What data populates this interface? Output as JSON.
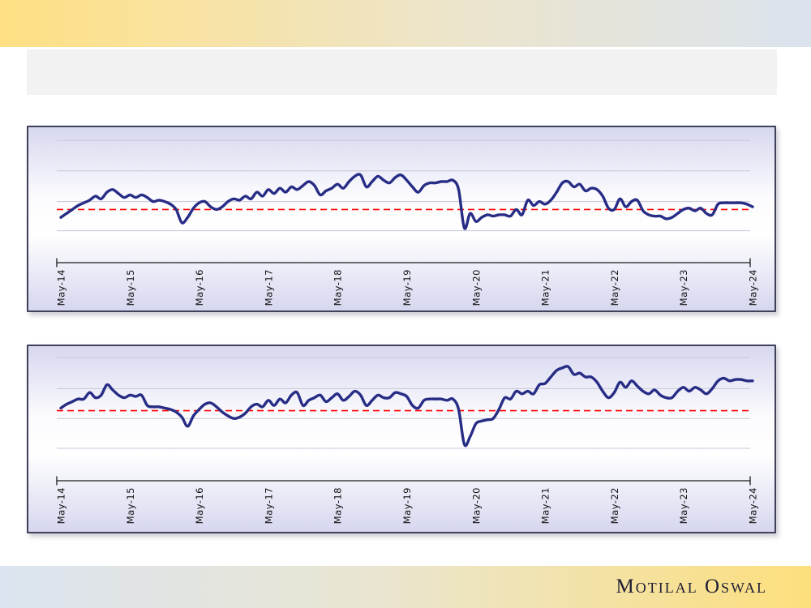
{
  "header": {
    "title": ""
  },
  "footer": {
    "brand": "Motilal Oswal"
  },
  "colors": {
    "top_bar_left": "#FFE083",
    "top_bar_mid": "#EDE5CB",
    "top_bar_right": "#DBE3EE",
    "footer_left": "#DBE4F0",
    "footer_mid": "#E9E5D2",
    "footer_right": "#FDDF7D",
    "title_box": "#F2F2F2",
    "panel_border": "#3F4059",
    "line": "#272C85",
    "reference": "#FF0000",
    "grid": "#C6C6D8",
    "axis": "#1A1A1A",
    "label_text": "#111111",
    "brand_text": "#1D1D33"
  },
  "chart_data": [
    {
      "type": "line",
      "title": "",
      "x_labels": [
        "May-14",
        "May-15",
        "May-16",
        "May-17",
        "May-18",
        "May-19",
        "May-20",
        "May-21",
        "May-22",
        "May-23",
        "May-24"
      ],
      "x_frequency": "monthly",
      "y_axis_labels": "none (axis unlabeled in image)",
      "y_unit": "estimated percent of plot height above x-axis baseline",
      "ylim": [
        0,
        100
      ],
      "grid": true,
      "gridlines_pct": [
        24,
        46,
        69,
        92
      ],
      "legend": "none",
      "reference_line": {
        "style": "dashed",
        "color": "#FF0000",
        "value_pct": 40
      },
      "series": [
        {
          "name": "series-1",
          "color": "#272C85",
          "values": [
            34,
            37,
            40,
            43,
            45,
            47,
            50,
            48,
            53,
            55,
            52,
            49,
            51,
            49,
            51,
            49,
            46,
            47,
            46,
            44,
            40,
            30,
            34,
            41,
            45,
            46,
            42,
            40,
            42,
            46,
            48,
            47,
            50,
            48,
            53,
            50,
            55,
            52,
            56,
            53,
            57,
            55,
            58,
            61,
            58,
            51,
            54,
            56,
            59,
            56,
            61,
            65,
            66,
            57,
            61,
            65,
            62,
            60,
            64,
            66,
            62,
            57,
            53,
            58,
            60,
            60,
            61,
            61,
            62,
            55,
            26,
            37,
            31,
            34,
            36,
            35,
            36,
            36,
            35,
            40,
            36,
            47,
            43,
            46,
            44,
            47,
            53,
            60,
            61,
            57,
            59,
            54,
            56,
            55,
            50,
            41,
            40,
            48,
            42,
            46,
            47,
            39,
            36,
            35,
            35,
            33,
            34,
            37,
            40,
            41,
            39,
            41,
            37,
            36,
            44,
            45,
            45,
            45,
            45,
            44,
            42
          ]
        }
      ]
    },
    {
      "type": "line",
      "title": "",
      "x_labels": [
        "May-14",
        "May-15",
        "May-16",
        "May-17",
        "May-18",
        "May-19",
        "May-20",
        "May-21",
        "May-22",
        "May-23",
        "May-24"
      ],
      "x_frequency": "monthly",
      "y_axis_labels": "none (axis unlabeled in image)",
      "y_unit": "estimated percent of plot height above x-axis baseline",
      "ylim": [
        0,
        100
      ],
      "grid": true,
      "gridlines_pct": [
        25,
        48,
        71,
        95
      ],
      "legend": "none",
      "reference_line": {
        "style": "dashed",
        "color": "#FF0000",
        "value_pct": 54
      },
      "series": [
        {
          "name": "series-1",
          "color": "#272C85",
          "values": [
            56,
            59,
            61,
            63,
            63,
            68,
            64,
            66,
            74,
            70,
            66,
            64,
            66,
            65,
            66,
            58,
            57,
            57,
            56,
            55,
            53,
            49,
            42,
            50,
            55,
            59,
            60,
            57,
            53,
            50,
            48,
            49,
            52,
            57,
            59,
            57,
            62,
            58,
            63,
            60,
            66,
            68,
            58,
            62,
            64,
            66,
            61,
            64,
            67,
            62,
            65,
            69,
            66,
            58,
            62,
            66,
            64,
            64,
            68,
            67,
            65,
            58,
            56,
            62,
            63,
            63,
            63,
            62,
            63,
            55,
            28,
            34,
            44,
            46,
            47,
            48,
            55,
            64,
            63,
            69,
            67,
            69,
            67,
            74,
            75,
            80,
            85,
            87,
            88,
            82,
            83,
            80,
            80,
            76,
            69,
            64,
            68,
            76,
            72,
            77,
            73,
            69,
            67,
            70,
            66,
            64,
            64,
            69,
            72,
            69,
            72,
            70,
            67,
            71,
            77,
            79,
            77,
            78,
            78,
            77,
            77
          ]
        }
      ]
    }
  ]
}
